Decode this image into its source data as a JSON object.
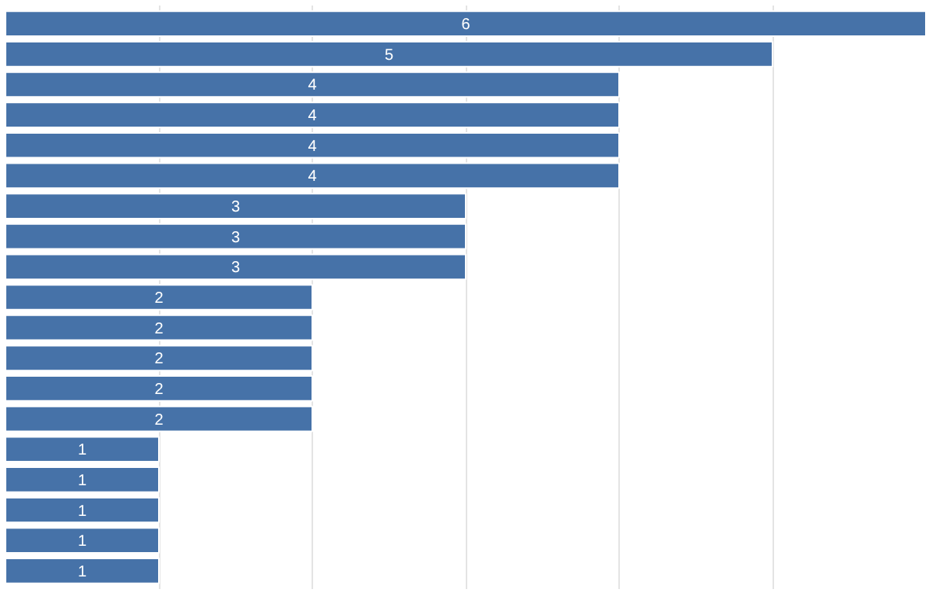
{
  "chart_data": {
    "type": "bar",
    "orientation": "horizontal",
    "categories": [
      null,
      null,
      null,
      null,
      null,
      null,
      null,
      null,
      null,
      null,
      null,
      null,
      null,
      null,
      null,
      null,
      null,
      null,
      null
    ],
    "values": [
      6,
      5,
      4,
      4,
      4,
      4,
      3,
      3,
      3,
      2,
      2,
      2,
      2,
      2,
      1,
      1,
      1,
      1,
      1
    ],
    "color": "#4672a8",
    "xlim": [
      0,
      6
    ],
    "xticks": [
      {
        "value": 1,
        "label": null
      },
      {
        "value": 2,
        "label": null
      },
      {
        "value": 3,
        "label": null
      },
      {
        "value": 4,
        "label": null
      },
      {
        "value": 5,
        "label": null
      }
    ],
    "grid": "x",
    "tick_labels": false,
    "data_labels": true
  }
}
